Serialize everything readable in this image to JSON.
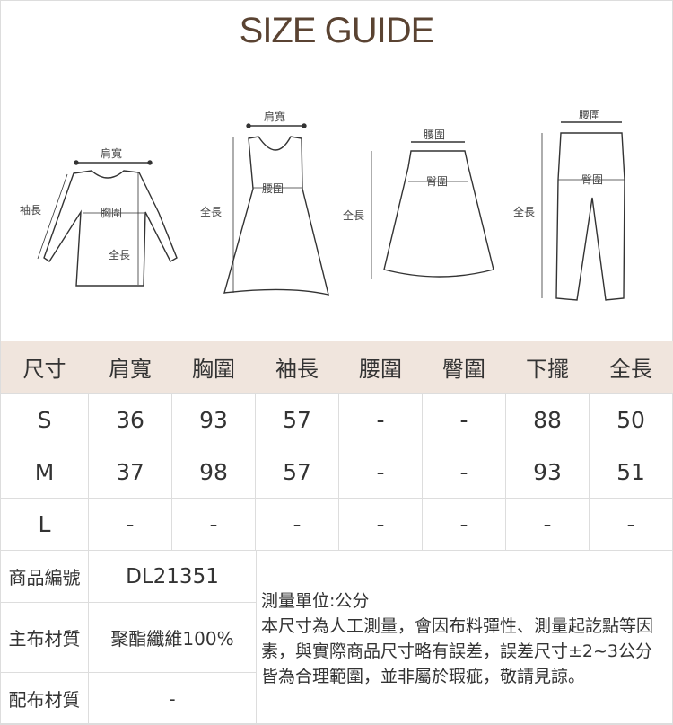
{
  "title": "SIZE GUIDE",
  "diagrams": {
    "top": {
      "shoulder": "肩寬",
      "sleeve": "袖長",
      "chest": "胸圍",
      "length": "全長"
    },
    "dress": {
      "shoulder": "肩寬",
      "waist": "腰圍",
      "length": "全長"
    },
    "skirt": {
      "waist": "腰圍",
      "hip": "臀圍",
      "length": "全長"
    },
    "pants": {
      "waist": "腰圍",
      "hip": "臀圍",
      "length": "全長"
    }
  },
  "size_table": {
    "headers": [
      "尺寸",
      "肩寬",
      "胸圍",
      "袖長",
      "腰圍",
      "臀圍",
      "下擺",
      "全長"
    ],
    "rows": [
      [
        "S",
        "36",
        "93",
        "57",
        "-",
        "-",
        "88",
        "50"
      ],
      [
        "M",
        "37",
        "98",
        "57",
        "-",
        "-",
        "93",
        "51"
      ],
      [
        "L",
        "-",
        "-",
        "-",
        "-",
        "-",
        "-",
        "-"
      ]
    ]
  },
  "info": {
    "product_code_label": "商品編號",
    "product_code": "DL21351",
    "main_fabric_label": "主布材質",
    "main_fabric": "聚酯纖維100%",
    "sub_fabric_label": "配布材質",
    "sub_fabric": "-",
    "note_title": "測量單位:公分",
    "note_body": "本尺寸為人工測量，會因布料彈性、測量起訖點等因素，與實際商品尺寸略有誤差，誤差尺寸±2~3公分皆為合理範圍，並非屬於瑕疵，敬請見諒。"
  },
  "colors": {
    "title": "#5a4332",
    "header_bg": "#f0e5dd",
    "border": "#dddddd"
  }
}
